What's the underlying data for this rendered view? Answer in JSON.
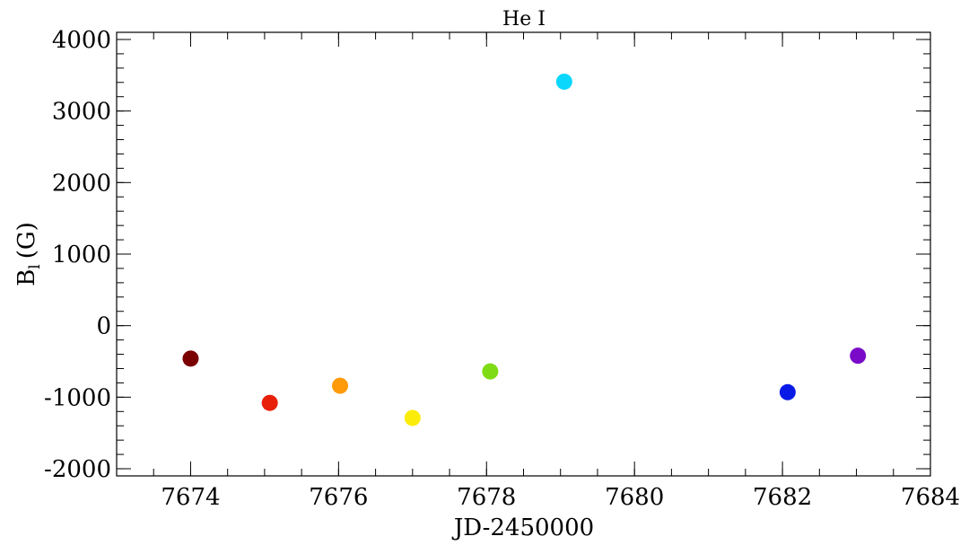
{
  "chart_data": {
    "type": "scatter",
    "title": "He I",
    "xlabel": "JD-2450000",
    "ylabel_main": "B",
    "ylabel_sub": "l",
    "ylabel_unit": "(G)",
    "xlim": [
      7673,
      7684
    ],
    "ylim": [
      -2100,
      4100
    ],
    "xticks": [
      7674,
      7676,
      7678,
      7680,
      7682,
      7684
    ],
    "xtick_labels": [
      "7674",
      "7676",
      "7678",
      "7680",
      "7682",
      "7684"
    ],
    "yticks": [
      -2000,
      -1000,
      0,
      1000,
      2000,
      3000,
      4000
    ],
    "ytick_labels": [
      "-2000",
      "-1000",
      "0",
      "1000",
      "2000",
      "3000",
      "4000"
    ],
    "x_minor_step": 0.5,
    "y_minor_step": 200,
    "points": [
      {
        "x": 7674.0,
        "y": -460,
        "color": "#7a0000"
      },
      {
        "x": 7675.07,
        "y": -1080,
        "color": "#e8200a"
      },
      {
        "x": 7676.02,
        "y": -840,
        "color": "#ff9a0a"
      },
      {
        "x": 7677.0,
        "y": -1290,
        "color": "#fbec0a"
      },
      {
        "x": 7678.05,
        "y": -640,
        "color": "#7fdc14"
      },
      {
        "x": 7679.05,
        "y": 3410,
        "color": "#0ad7fb"
      },
      {
        "x": 7682.07,
        "y": -930,
        "color": "#0a1ae6"
      },
      {
        "x": 7683.02,
        "y": -420,
        "color": "#7a0ac8"
      }
    ]
  }
}
